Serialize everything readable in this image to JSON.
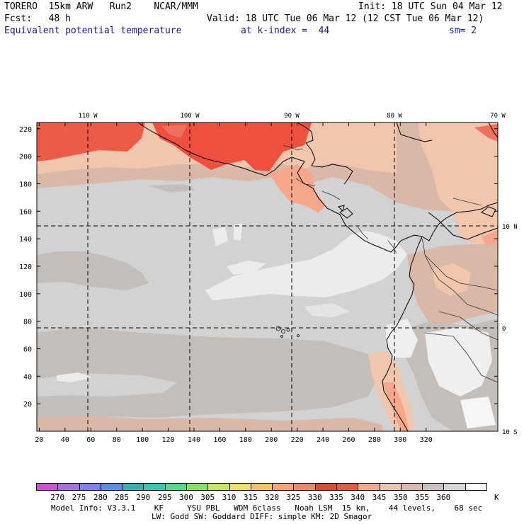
{
  "header": {
    "model": "TORERO  15km ARW   Run2    NCAR/MMM",
    "init": "Init: 18 UTC Sun 04 Mar 12",
    "fcst": "Fcst:   48 h",
    "valid": "Valid: 18 UTC Tue 06 Mar 12 (12 CST Tue 06 Mar 12)",
    "field": "Equivalent potential temperature",
    "level": "at k-index =  44",
    "smooth": "sm= 2"
  },
  "map": {
    "lon_labels": [
      "110 W",
      "100 W",
      "90 W",
      "80 W",
      "70 W"
    ],
    "lat_labels": [
      "10 N",
      "0",
      "10 S"
    ],
    "x_ticks": [
      "20",
      "40",
      "60",
      "80",
      "100",
      "120",
      "140",
      "160",
      "180",
      "200",
      "220",
      "240",
      "260",
      "280",
      "300",
      "320"
    ],
    "y_ticks": [
      "20",
      "40",
      "60",
      "80",
      "100",
      "120",
      "140",
      "160",
      "180",
      "200",
      "220"
    ],
    "colors": {
      "pale_gray": "#d2d2d2",
      "gray": "#c4bebb",
      "tan": "#d9b8a8",
      "peach": "#f0c6ad",
      "salmon": "#f5a78c",
      "orange_red": "#ee6e55",
      "red": "#ee4a3d",
      "white_zone": "#efefef"
    }
  },
  "colorbar": {
    "labels": [
      "270",
      "275",
      "280",
      "285",
      "290",
      "295",
      "300",
      "305",
      "310",
      "315",
      "320",
      "325",
      "330",
      "335",
      "340",
      "345",
      "350",
      "355",
      "360"
    ],
    "unit": "K",
    "colors": [
      "#cc55cc",
      "#a273d8",
      "#8080ec",
      "#5a8ee6",
      "#33b4b4",
      "#33ccaa",
      "#55d98a",
      "#88e066",
      "#c8e855",
      "#eee555",
      "#f2c65a",
      "#f5a571",
      "#ee8866",
      "#ee4433",
      "#ee5544",
      "#f2aa8c",
      "#ecc6b0",
      "#d9b9ad",
      "#c7c2c0",
      "#d5d5d5",
      "#fbfbfb"
    ]
  },
  "footer": {
    "line1": "Model Info: V3.3.1    KF     YSU PBL   WDM 6class   Noah LSM  15 km,    44 levels,    68 sec",
    "line2": "LW: Godd SW: Goddard DIFF: simple KM: 2D Smagor"
  }
}
